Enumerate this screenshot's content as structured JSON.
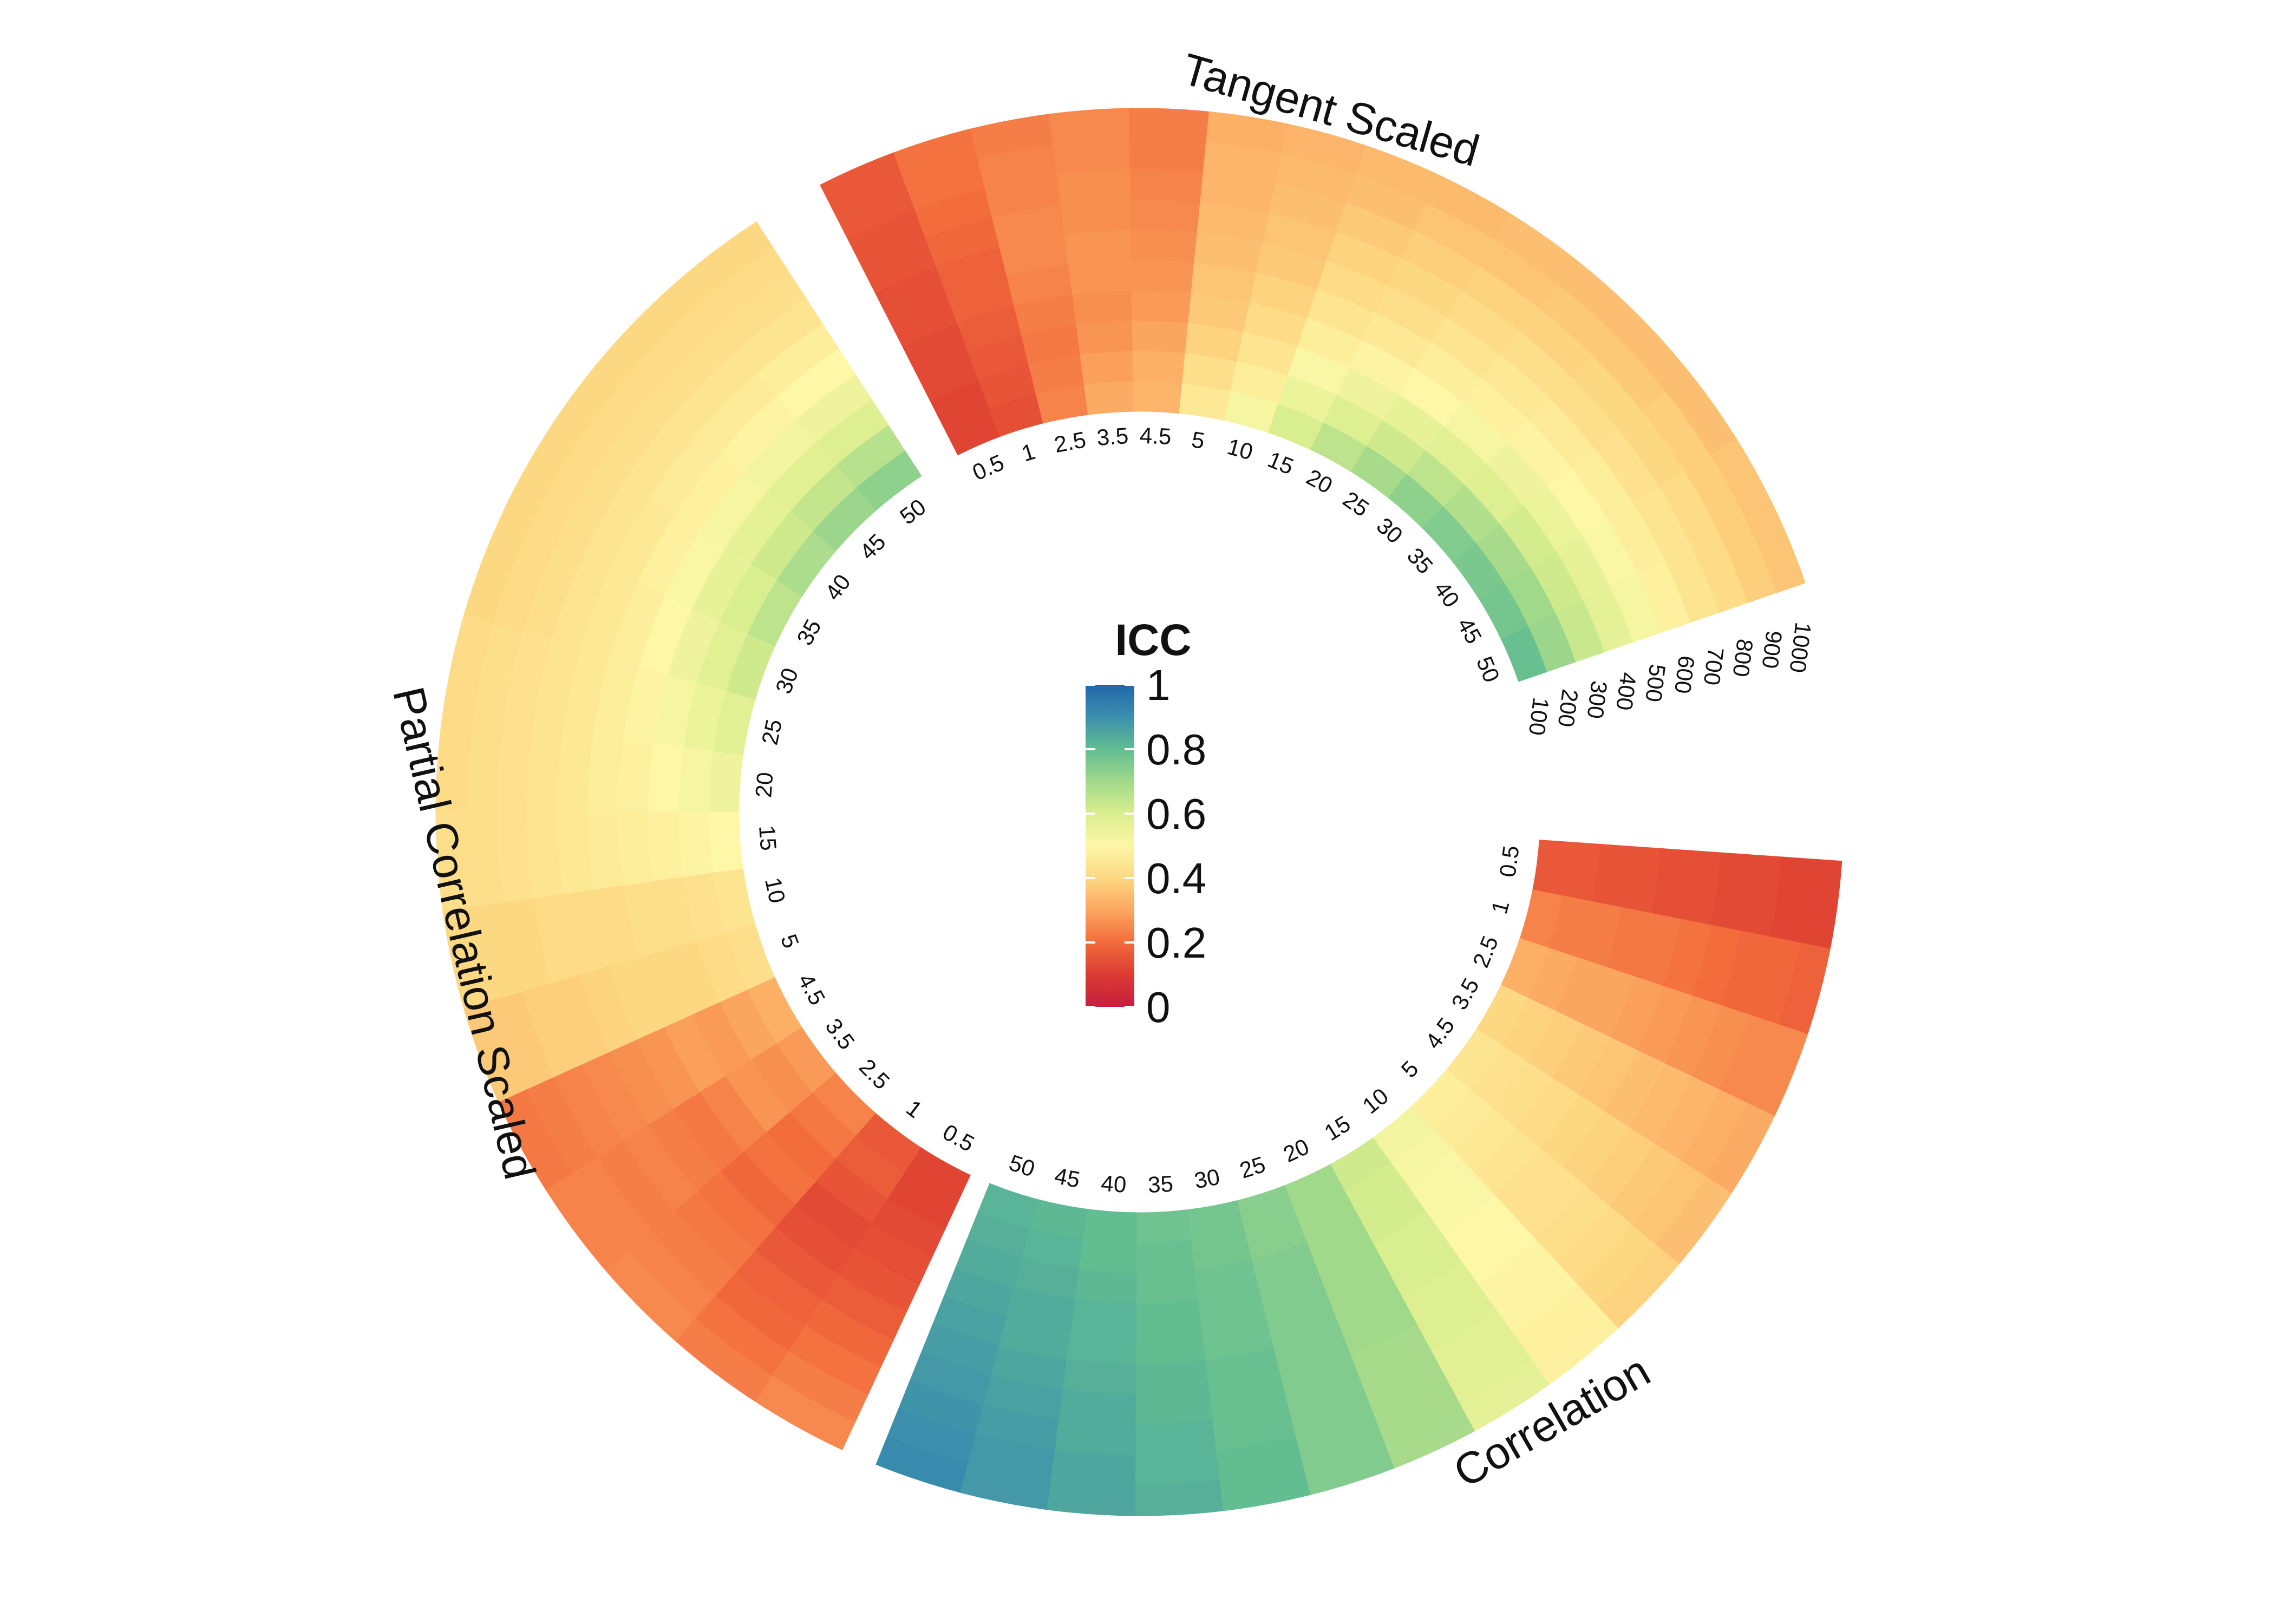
{
  "chart_data": {
    "type": "circular-heatmap",
    "legend": {
      "title": "ICC",
      "ticks": [
        "1",
        "0.8",
        "0.6",
        "0.4",
        "0.2",
        "0"
      ],
      "tick_values": [
        1,
        0.8,
        0.6,
        0.4,
        0.2,
        0
      ],
      "range": [
        0,
        1
      ],
      "colormap": "Spectral",
      "stops": [
        {
          "v": 0.0,
          "color": "#c51f3f"
        },
        {
          "v": 0.1,
          "color": "#db3b32"
        },
        {
          "v": 0.2,
          "color": "#f26c3c"
        },
        {
          "v": 0.3,
          "color": "#fba65f"
        },
        {
          "v": 0.4,
          "color": "#fdd883"
        },
        {
          "v": 0.5,
          "color": "#fdf7a7"
        },
        {
          "v": 0.6,
          "color": "#d9ee8e"
        },
        {
          "v": 0.7,
          "color": "#a1d98b"
        },
        {
          "v": 0.8,
          "color": "#62bd91"
        },
        {
          "v": 0.9,
          "color": "#3c8fad"
        },
        {
          "v": 1.0,
          "color": "#2166ac"
        }
      ]
    },
    "sectors": [
      {
        "name": "Tangent Scaled",
        "rings": [
          "100",
          "200",
          "300",
          "400",
          "500",
          "600",
          "700",
          "800",
          "900",
          "1000"
        ],
        "columns": [
          "0.5",
          "1",
          "2.5",
          "3.5",
          "4.5",
          "5",
          "10",
          "15",
          "20",
          "25",
          "30",
          "35",
          "40",
          "45",
          "50"
        ],
        "values": [
          [
            0.12,
            0.14,
            0.24,
            0.31,
            0.33,
            0.45,
            0.52,
            0.6,
            0.65,
            0.69,
            0.73,
            0.75,
            0.76,
            0.77,
            0.79
          ],
          [
            0.12,
            0.15,
            0.23,
            0.29,
            0.32,
            0.42,
            0.47,
            0.55,
            0.59,
            0.62,
            0.65,
            0.67,
            0.69,
            0.7,
            0.71
          ],
          [
            0.13,
            0.16,
            0.22,
            0.27,
            0.3,
            0.39,
            0.44,
            0.51,
            0.54,
            0.56,
            0.58,
            0.59,
            0.61,
            0.62,
            0.63
          ],
          [
            0.13,
            0.17,
            0.23,
            0.26,
            0.28,
            0.37,
            0.41,
            0.47,
            0.49,
            0.5,
            0.52,
            0.54,
            0.55,
            0.56,
            0.57
          ],
          [
            0.14,
            0.18,
            0.24,
            0.27,
            0.27,
            0.36,
            0.39,
            0.44,
            0.45,
            0.47,
            0.48,
            0.49,
            0.5,
            0.51,
            0.52
          ],
          [
            0.14,
            0.18,
            0.25,
            0.27,
            0.26,
            0.35,
            0.37,
            0.41,
            0.42,
            0.44,
            0.45,
            0.46,
            0.47,
            0.47,
            0.48
          ],
          [
            0.15,
            0.19,
            0.25,
            0.26,
            0.25,
            0.34,
            0.36,
            0.39,
            0.4,
            0.41,
            0.42,
            0.42,
            0.43,
            0.44,
            0.44
          ],
          [
            0.15,
            0.2,
            0.24,
            0.26,
            0.24,
            0.33,
            0.35,
            0.37,
            0.38,
            0.39,
            0.39,
            0.4,
            0.4,
            0.41,
            0.41
          ],
          [
            0.16,
            0.21,
            0.24,
            0.25,
            0.23,
            0.33,
            0.34,
            0.35,
            0.36,
            0.36,
            0.37,
            0.37,
            0.38,
            0.38,
            0.38
          ],
          [
            0.16,
            0.21,
            0.23,
            0.25,
            0.23,
            0.32,
            0.33,
            0.34,
            0.34,
            0.35,
            0.35,
            0.35,
            0.35,
            0.36,
            0.36
          ]
        ]
      },
      {
        "name": "Correlation",
        "rings": [
          "100",
          "200",
          "300",
          "400",
          "500",
          "600",
          "700",
          "800",
          "900",
          "1000"
        ],
        "columns": [
          "0.5",
          "1",
          "2.5",
          "3.5",
          "4.5",
          "5",
          "10",
          "15",
          "20",
          "25",
          "30",
          "35",
          "40",
          "45",
          "50"
        ],
        "values": [
          [
            0.16,
            0.24,
            0.32,
            0.4,
            0.44,
            0.47,
            0.53,
            0.62,
            0.7,
            0.74,
            0.77,
            0.78,
            0.8,
            0.81,
            0.82
          ],
          [
            0.16,
            0.23,
            0.31,
            0.39,
            0.43,
            0.46,
            0.52,
            0.61,
            0.7,
            0.74,
            0.77,
            0.79,
            0.8,
            0.82,
            0.83
          ],
          [
            0.15,
            0.23,
            0.3,
            0.38,
            0.42,
            0.45,
            0.51,
            0.61,
            0.7,
            0.75,
            0.78,
            0.79,
            0.81,
            0.83,
            0.84
          ],
          [
            0.15,
            0.22,
            0.3,
            0.37,
            0.41,
            0.44,
            0.51,
            0.6,
            0.7,
            0.75,
            0.78,
            0.8,
            0.82,
            0.84,
            0.85
          ],
          [
            0.14,
            0.22,
            0.29,
            0.36,
            0.4,
            0.43,
            0.5,
            0.6,
            0.7,
            0.75,
            0.78,
            0.8,
            0.82,
            0.84,
            0.86
          ],
          [
            0.14,
            0.21,
            0.28,
            0.35,
            0.39,
            0.43,
            0.5,
            0.59,
            0.7,
            0.75,
            0.79,
            0.81,
            0.83,
            0.85,
            0.87
          ],
          [
            0.13,
            0.2,
            0.27,
            0.34,
            0.38,
            0.42,
            0.49,
            0.59,
            0.69,
            0.75,
            0.79,
            0.81,
            0.84,
            0.86,
            0.88
          ],
          [
            0.13,
            0.19,
            0.26,
            0.33,
            0.37,
            0.41,
            0.49,
            0.58,
            0.69,
            0.75,
            0.79,
            0.82,
            0.84,
            0.87,
            0.89
          ],
          [
            0.12,
            0.19,
            0.25,
            0.32,
            0.36,
            0.4,
            0.48,
            0.58,
            0.69,
            0.75,
            0.8,
            0.82,
            0.85,
            0.88,
            0.9
          ],
          [
            0.12,
            0.18,
            0.25,
            0.31,
            0.35,
            0.39,
            0.48,
            0.57,
            0.69,
            0.75,
            0.8,
            0.83,
            0.85,
            0.88,
            0.91
          ]
        ]
      },
      {
        "name": "Partial Correlation Scaled",
        "rings": [
          "100",
          "200",
          "300",
          "400",
          "500",
          "600",
          "700",
          "800",
          "900",
          "1000"
        ],
        "columns": [
          "0.5",
          "1",
          "2.5",
          "3.5",
          "4.5",
          "5",
          "10",
          "15",
          "20",
          "25",
          "30",
          "35",
          "40",
          "45",
          "50"
        ],
        "values": [
          [
            0.12,
            0.16,
            0.24,
            0.28,
            0.32,
            0.42,
            0.44,
            0.5,
            0.54,
            0.58,
            0.62,
            0.65,
            0.68,
            0.71,
            0.73
          ],
          [
            0.12,
            0.17,
            0.22,
            0.26,
            0.3,
            0.41,
            0.43,
            0.49,
            0.52,
            0.55,
            0.58,
            0.6,
            0.62,
            0.64,
            0.66
          ],
          [
            0.13,
            0.15,
            0.2,
            0.27,
            0.28,
            0.4,
            0.42,
            0.48,
            0.5,
            0.52,
            0.54,
            0.56,
            0.57,
            0.58,
            0.59
          ],
          [
            0.14,
            0.13,
            0.21,
            0.24,
            0.29,
            0.4,
            0.42,
            0.47,
            0.48,
            0.49,
            0.5,
            0.51,
            0.52,
            0.53,
            0.54
          ],
          [
            0.15,
            0.14,
            0.19,
            0.22,
            0.27,
            0.4,
            0.41,
            0.46,
            0.47,
            0.47,
            0.47,
            0.48,
            0.48,
            0.49,
            0.5
          ],
          [
            0.17,
            0.16,
            0.21,
            0.23,
            0.26,
            0.39,
            0.41,
            0.45,
            0.45,
            0.45,
            0.45,
            0.45,
            0.46,
            0.46,
            0.47
          ],
          [
            0.19,
            0.18,
            0.22,
            0.24,
            0.25,
            0.38,
            0.41,
            0.44,
            0.44,
            0.44,
            0.44,
            0.44,
            0.44,
            0.44,
            0.44
          ],
          [
            0.21,
            0.19,
            0.23,
            0.23,
            0.24,
            0.38,
            0.4,
            0.43,
            0.43,
            0.43,
            0.42,
            0.42,
            0.42,
            0.42,
            0.42
          ],
          [
            0.23,
            0.21,
            0.24,
            0.24,
            0.23,
            0.37,
            0.4,
            0.42,
            0.42,
            0.42,
            0.41,
            0.41,
            0.41,
            0.41,
            0.41
          ],
          [
            0.25,
            0.23,
            0.25,
            0.24,
            0.22,
            0.37,
            0.4,
            0.42,
            0.41,
            0.41,
            0.4,
            0.4,
            0.4,
            0.4,
            0.4
          ]
        ]
      }
    ]
  }
}
